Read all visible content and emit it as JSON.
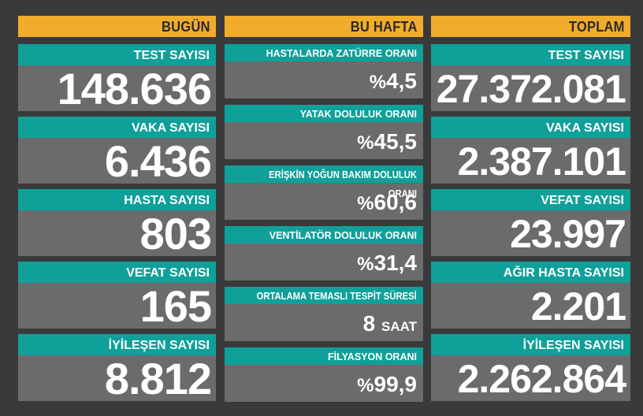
{
  "today": {
    "header": "BUGÜN",
    "cards": [
      {
        "label": "TEST SAYISI",
        "value": "148.636"
      },
      {
        "label": "VAKA SAYISI",
        "value": "6.436"
      },
      {
        "label": "HASTA SAYISI",
        "value": "803"
      },
      {
        "label": "VEFAT SAYISI",
        "value": "165"
      },
      {
        "label": "İYİLEŞEN SAYISI",
        "value": "8.812"
      }
    ]
  },
  "week": {
    "header": "BU HAFTA",
    "cards": [
      {
        "label": "HASTALARDA ZATÜRRE ORANI",
        "prefix": "%",
        "value": "4,5",
        "unit": ""
      },
      {
        "label": "YATAK DOLULUK ORANI",
        "prefix": "%",
        "value": "45,5",
        "unit": ""
      },
      {
        "label": "ERİŞKİN YOĞUN BAKIM DOLULUK ORANI",
        "prefix": "%",
        "value": "60,6",
        "unit": ""
      },
      {
        "label": "VENTİLATÖR DOLULUK ORANI",
        "prefix": "%",
        "value": "31,4",
        "unit": ""
      },
      {
        "label": "ORTALAMA TEMASLI TESPİT SÜRESİ",
        "prefix": "",
        "value": "8",
        "unit": "SAAT"
      },
      {
        "label": "FİLYASYON ORANI",
        "prefix": "%",
        "value": "99,9",
        "unit": ""
      }
    ]
  },
  "total": {
    "header": "TOPLAM",
    "cards": [
      {
        "label": "TEST SAYISI",
        "value": "27.372.081"
      },
      {
        "label": "VAKA SAYISI",
        "value": "2.387.101"
      },
      {
        "label": "VEFAT SAYISI",
        "value": "23.997"
      },
      {
        "label": "AĞIR HASTA SAYISI",
        "value": "2.201"
      },
      {
        "label": "İYİLEŞEN SAYISI",
        "value": "2.262.864"
      }
    ]
  },
  "colors": {
    "background": "#3a3a3a",
    "header": "#f2ac2c",
    "label_band": "#0fa09a",
    "value_band": "#6b6b6b"
  }
}
